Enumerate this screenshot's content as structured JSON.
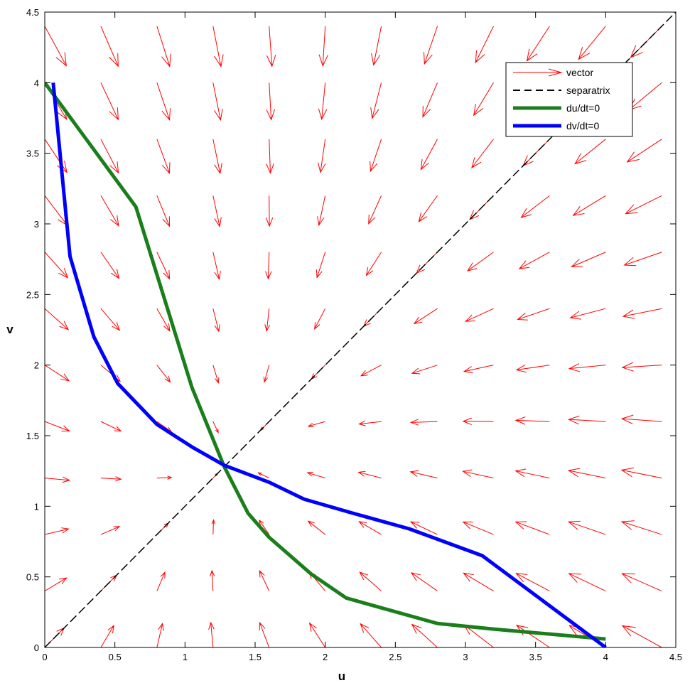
{
  "chart_data": {
    "type": "line",
    "xlabel": "u",
    "ylabel": "v",
    "xlim": [
      0,
      4.5
    ],
    "ylim": [
      0,
      4.5
    ],
    "xticks": [
      "0",
      "0.5",
      "1",
      "1.5",
      "2",
      "2.5",
      "3",
      "3.5",
      "4",
      "4.5"
    ],
    "yticks": [
      "0",
      "0.5",
      "1",
      "1.5",
      "2",
      "2.5",
      "3",
      "3.5",
      "4",
      "4.5"
    ],
    "legend_position": "top-right",
    "grid": false,
    "series": [
      {
        "name": "separatrix",
        "color": "#000000",
        "style": "dashed",
        "points": [
          [
            0,
            0
          ],
          [
            4.5,
            4.5
          ]
        ]
      },
      {
        "name": "du/dt=0",
        "color": "#1a7f1a",
        "style": "solid",
        "points": [
          [
            0,
            4.0
          ],
          [
            0.65,
            3.12
          ],
          [
            1.05,
            1.84
          ],
          [
            1.28,
            1.28
          ],
          [
            1.45,
            0.95
          ],
          [
            1.6,
            0.78
          ],
          [
            1.9,
            0.52
          ],
          [
            2.15,
            0.35
          ],
          [
            2.8,
            0.17
          ],
          [
            3.2,
            0.13
          ],
          [
            4.0,
            0.06
          ]
        ]
      },
      {
        "name": "dv/dt=0",
        "color": "#0000ff",
        "style": "solid",
        "points": [
          [
            0.06,
            4.0
          ],
          [
            0.18,
            2.77
          ],
          [
            0.35,
            2.2
          ],
          [
            0.52,
            1.87
          ],
          [
            0.8,
            1.58
          ],
          [
            1.05,
            1.42
          ],
          [
            1.28,
            1.29
          ],
          [
            1.6,
            1.17
          ],
          [
            1.85,
            1.05
          ],
          [
            2.2,
            0.95
          ],
          [
            2.6,
            0.84
          ],
          [
            3.12,
            0.65
          ],
          [
            4.0,
            0.0
          ]
        ]
      }
    ],
    "vector_field": {
      "name": "vector",
      "color": "#ff0000",
      "grid_step": 0.4,
      "range": [
        0,
        4.4
      ]
    },
    "legend": [
      {
        "label": "vector",
        "color": "#ff0000",
        "style": "arrow"
      },
      {
        "label": "separatrix",
        "color": "#000000",
        "style": "dashed"
      },
      {
        "label": "du/dt=0",
        "color": "#1a7f1a",
        "style": "thick"
      },
      {
        "label": "dv/dt=0",
        "color": "#0000ff",
        "style": "thick"
      }
    ]
  }
}
